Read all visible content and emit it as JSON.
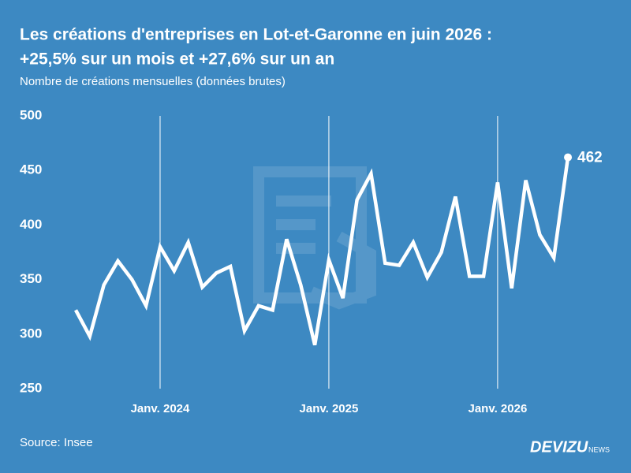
{
  "chart_data": {
    "type": "line",
    "title": "Les créations d'entreprises en Lot-et-Garonne en juin 2026 :",
    "title_line2": "+25,5% sur un mois et +27,6% sur un an",
    "subtitle": "Nombre de créations mensuelles (données brutes)",
    "x": [
      "2023-07",
      "2023-08",
      "2023-09",
      "2023-10",
      "2023-11",
      "2023-12",
      "2024-01",
      "2024-02",
      "2024-03",
      "2024-04",
      "2024-05",
      "2024-06",
      "2024-07",
      "2024-08",
      "2024-09",
      "2024-10",
      "2024-11",
      "2024-12",
      "2025-01",
      "2025-02",
      "2025-03",
      "2025-04",
      "2025-05",
      "2025-06",
      "2025-07",
      "2025-08",
      "2025-09",
      "2025-10",
      "2025-11",
      "2025-12",
      "2026-01",
      "2026-02",
      "2026-03",
      "2026-04",
      "2026-05",
      "2026-06"
    ],
    "values": [
      322,
      298,
      345,
      367,
      350,
      326,
      380,
      358,
      384,
      343,
      356,
      362,
      303,
      326,
      322,
      387,
      345,
      290,
      368,
      333,
      423,
      447,
      365,
      363,
      384,
      352,
      375,
      426,
      353,
      353,
      439,
      342,
      441,
      391,
      370,
      462
    ],
    "color": "#ffffff",
    "ylim": [
      250,
      500
    ],
    "yticks": [
      250,
      300,
      350,
      400,
      450,
      500
    ],
    "xticks": [
      {
        "value": "2024-01",
        "label": "Janv. 2024"
      },
      {
        "value": "2025-01",
        "label": "Janv. 2025"
      },
      {
        "value": "2026-01",
        "label": "Janv. 2026"
      }
    ],
    "grid": "x",
    "source": "Source: Insee",
    "brand": "DEVIZU",
    "brand_suffix": "NEWS"
  }
}
